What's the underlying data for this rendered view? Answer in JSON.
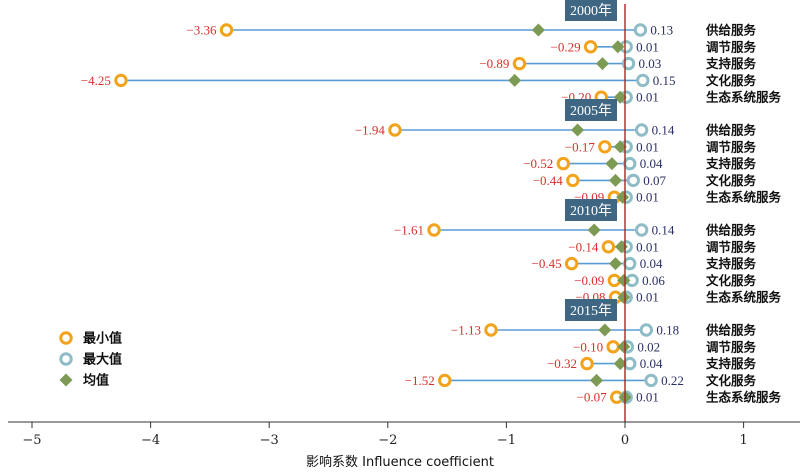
{
  "chart_data": {
    "type": "dot-range",
    "xlabel": "影响系数  Influence coefficient",
    "xlim": [
      -5,
      1.4
    ],
    "xticks": [
      -5,
      -4,
      -3,
      -2,
      -1,
      0,
      1
    ],
    "xtick_labels": [
      "−5",
      "−4",
      "−3",
      "−2",
      "−1",
      "0",
      "1"
    ],
    "legend": {
      "placement": "bottom-left",
      "entries": [
        {
          "key": "min",
          "label": "最小值"
        },
        {
          "key": "max",
          "label": "最大值"
        },
        {
          "key": "mean",
          "label": "均值"
        }
      ]
    },
    "colors": {
      "min": "#f2a31b",
      "max": "#8fbcc7",
      "mean": "#7d9a54",
      "line": "#5b9bd5",
      "zero_line": "#b32024",
      "min_label": "#d9302c",
      "max_label": "#2a2f66",
      "year_box": "#3f6683"
    },
    "groups": [
      {
        "year": "2000年",
        "items": [
          {
            "service": "供给服务",
            "min": -3.36,
            "min_label": "−3.36",
            "max": 0.13,
            "max_label": "0.13",
            "mean": -0.73
          },
          {
            "service": "调节服务",
            "min": -0.29,
            "min_label": "−0.29",
            "max": 0.01,
            "max_label": "0.01",
            "mean": -0.06
          },
          {
            "service": "支持服务",
            "min": -0.89,
            "min_label": "−0.89",
            "max": 0.03,
            "max_label": "0.03",
            "mean": -0.19
          },
          {
            "service": "文化服务",
            "min": -4.25,
            "min_label": "−4.25",
            "max": 0.15,
            "max_label": "0.15",
            "mean": -0.93
          },
          {
            "service": "生态系统服务",
            "min": -0.2,
            "min_label": "−0.20",
            "max": 0.01,
            "max_label": "0.01",
            "mean": -0.04
          }
        ]
      },
      {
        "year": "2005年",
        "items": [
          {
            "service": "供给服务",
            "min": -1.94,
            "min_label": "−1.94",
            "max": 0.14,
            "max_label": "0.14",
            "mean": -0.4
          },
          {
            "service": "调节服务",
            "min": -0.17,
            "min_label": "−0.17",
            "max": 0.01,
            "max_label": "0.01",
            "mean": -0.04
          },
          {
            "service": "支持服务",
            "min": -0.52,
            "min_label": "−0.52",
            "max": 0.04,
            "max_label": "0.04",
            "mean": -0.11
          },
          {
            "service": "文化服务",
            "min": -0.44,
            "min_label": "−0.44",
            "max": 0.07,
            "max_label": "0.07",
            "mean": -0.08
          },
          {
            "service": "生态系统服务",
            "min": -0.09,
            "min_label": "−0.09",
            "max": 0.01,
            "max_label": "0.01",
            "mean": -0.02
          }
        ]
      },
      {
        "year": "2010年",
        "items": [
          {
            "service": "供给服务",
            "min": -1.61,
            "min_label": "−1.61",
            "max": 0.14,
            "max_label": "0.14",
            "mean": -0.26
          },
          {
            "service": "调节服务",
            "min": -0.14,
            "min_label": "−0.14",
            "max": 0.01,
            "max_label": "0.01",
            "mean": -0.03
          },
          {
            "service": "支持服务",
            "min": -0.45,
            "min_label": "−0.45",
            "max": 0.04,
            "max_label": "0.04",
            "mean": -0.08
          },
          {
            "service": "文化服务",
            "min": -0.09,
            "min_label": "−0.09",
            "max": 0.06,
            "max_label": "0.06",
            "mean": -0.01
          },
          {
            "service": "生态系统服务",
            "min": -0.08,
            "min_label": "−0.08",
            "max": 0.01,
            "max_label": "0.01",
            "mean": -0.01
          }
        ]
      },
      {
        "year": "2015年",
        "items": [
          {
            "service": "供给服务",
            "min": -1.13,
            "min_label": "−1.13",
            "max": 0.18,
            "max_label": "0.18",
            "mean": -0.17
          },
          {
            "service": "调节服务",
            "min": -0.1,
            "min_label": "−0.10",
            "max": 0.02,
            "max_label": "0.02",
            "mean": -0.01
          },
          {
            "service": "支持服务",
            "min": -0.32,
            "min_label": "−0.32",
            "max": 0.04,
            "max_label": "0.04",
            "mean": -0.04
          },
          {
            "service": "文化服务",
            "min": -1.52,
            "min_label": "−1.52",
            "max": 0.22,
            "max_label": "0.22",
            "mean": -0.24
          },
          {
            "service": "生态系统服务",
            "min": -0.07,
            "min_label": "−0.07",
            "max": 0.01,
            "max_label": "0.01",
            "mean": 0.0
          }
        ]
      }
    ]
  }
}
